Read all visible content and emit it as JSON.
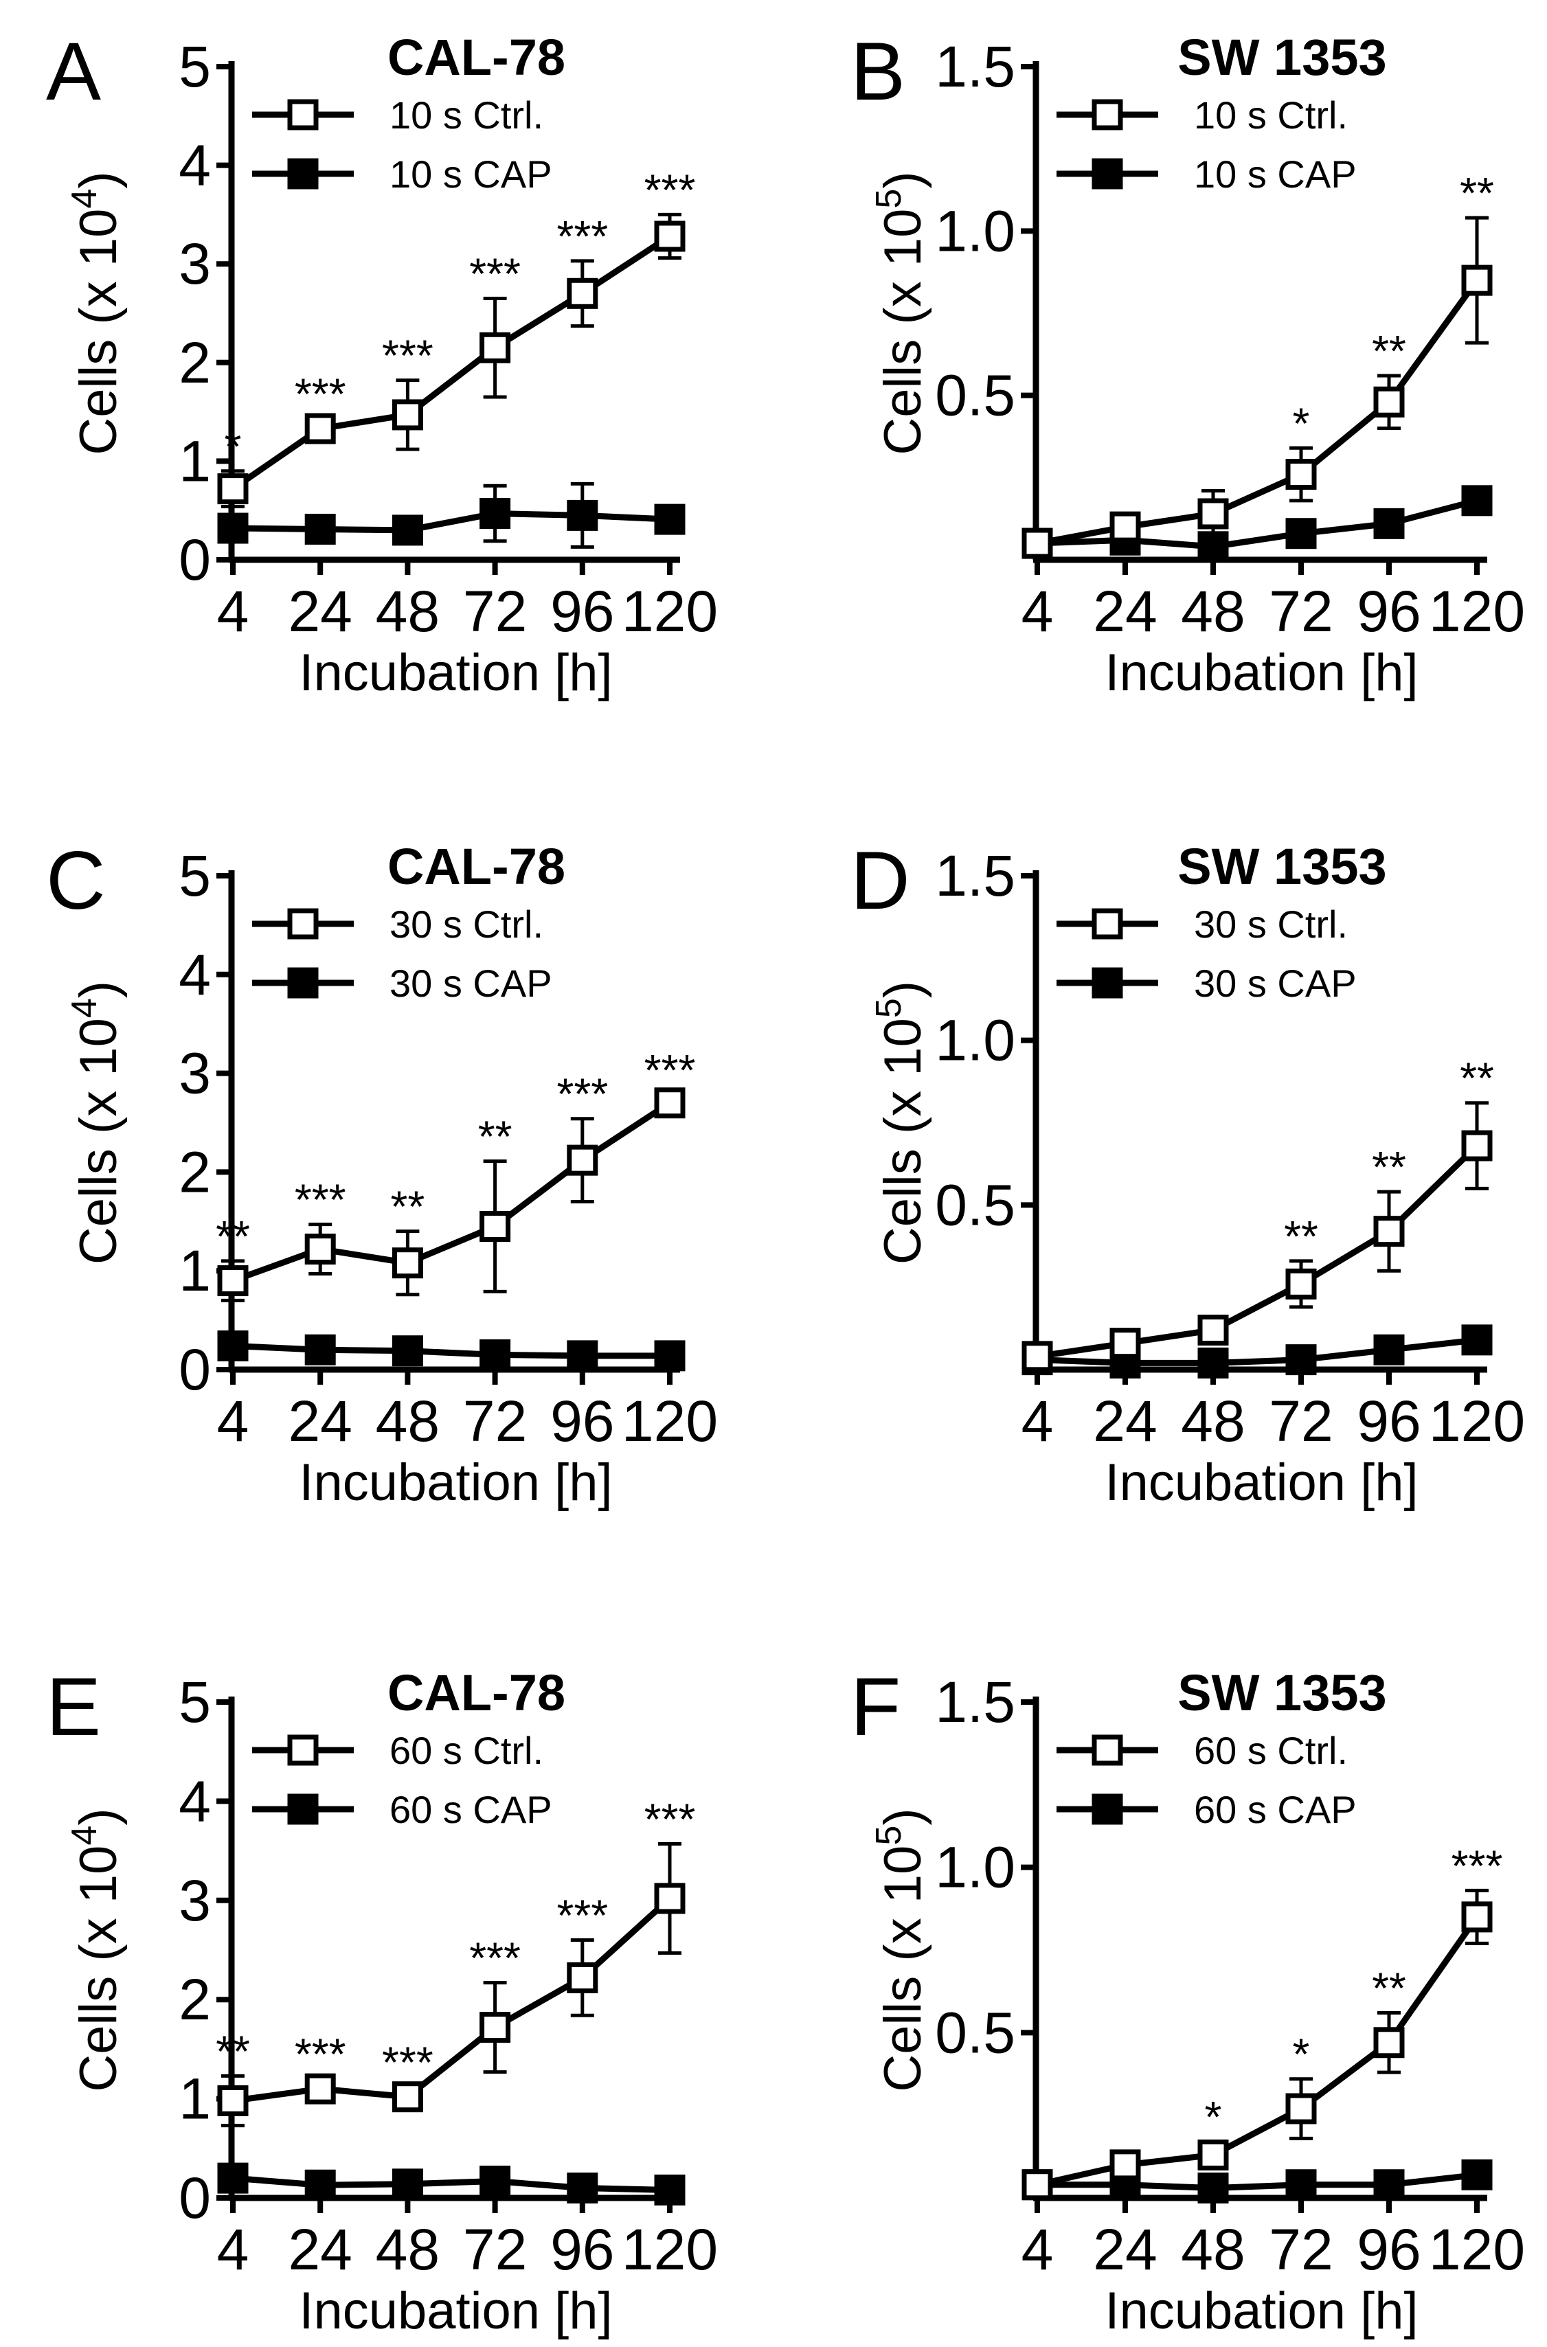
{
  "chart_data": [
    {
      "panel": "A",
      "type": "line",
      "title": "CAL-78",
      "xlabel": "Incubation [h]",
      "ylabel": "Cells (x 10^4)",
      "ylabel_base": "Cells (x 10",
      "ylabel_exp": "4",
      "ylabel_end": ")",
      "categories": [
        "4",
        "24",
        "48",
        "72",
        "96",
        "120"
      ],
      "ylim": [
        0,
        5
      ],
      "yticks": [
        "0",
        "1",
        "2",
        "3",
        "4",
        "5"
      ],
      "ytick_values": [
        0,
        1,
        2,
        3,
        4,
        5
      ],
      "series": [
        {
          "name": "10 s Ctrl.",
          "marker": "open-square",
          "values": [
            0.72,
            1.33,
            1.47,
            2.15,
            2.7,
            3.28
          ],
          "errors": [
            0.18,
            0.1,
            0.35,
            0.5,
            0.33,
            0.22
          ]
        },
        {
          "name": "10 s CAP",
          "marker": "filled-square",
          "values": [
            0.32,
            0.31,
            0.3,
            0.47,
            0.45,
            0.41
          ],
          "errors": [
            0.06,
            0.05,
            0.05,
            0.28,
            0.32,
            0.05
          ]
        }
      ],
      "significance": [
        "*",
        "***",
        "***",
        "***",
        "***",
        "***"
      ],
      "legend_location": "top-left"
    },
    {
      "panel": "B",
      "type": "line",
      "title": "SW 1353",
      "xlabel": "Incubation [h]",
      "ylabel": "Cells (x 10^5)",
      "ylabel_base": "Cells (x 10",
      "ylabel_exp": "5",
      "ylabel_end": ")",
      "categories": [
        "4",
        "24",
        "48",
        "72",
        "96",
        "120"
      ],
      "ylim": [
        0,
        1.5
      ],
      "yticks": [
        "0.5",
        "1.0",
        "1.5"
      ],
      "ytick_values": [
        0.5,
        1.0,
        1.5
      ],
      "series": [
        {
          "name": "10 s Ctrl.",
          "marker": "open-square",
          "values": [
            0.05,
            0.1,
            0.14,
            0.26,
            0.48,
            0.85
          ],
          "errors": [
            0.02,
            0.04,
            0.07,
            0.08,
            0.08,
            0.19
          ]
        },
        {
          "name": "10 s CAP",
          "marker": "filled-square",
          "values": [
            0.05,
            0.06,
            0.04,
            0.08,
            0.11,
            0.18
          ],
          "errors": [
            0.01,
            0.01,
            0.01,
            0.02,
            0.02,
            0.02
          ]
        }
      ],
      "significance": [
        "",
        "",
        "",
        "*",
        "**",
        "**"
      ],
      "legend_location": "top-left"
    },
    {
      "panel": "C",
      "type": "line",
      "title": "CAL-78",
      "xlabel": "Incubation [h]",
      "ylabel": "Cells (x 10^4)",
      "ylabel_base": "Cells (x 10",
      "ylabel_exp": "4",
      "ylabel_end": ")",
      "categories": [
        "4",
        "24",
        "48",
        "72",
        "96",
        "120"
      ],
      "ylim": [
        0,
        5
      ],
      "yticks": [
        "0",
        "1",
        "2",
        "3",
        "4",
        "5"
      ],
      "ytick_values": [
        0,
        1,
        2,
        3,
        4,
        5
      ],
      "series": [
        {
          "name": "30 s Ctrl.",
          "marker": "open-square",
          "values": [
            0.9,
            1.22,
            1.08,
            1.45,
            2.12,
            2.7
          ],
          "errors": [
            0.2,
            0.25,
            0.32,
            0.66,
            0.42,
            0.08
          ]
        },
        {
          "name": "30 s CAP",
          "marker": "filled-square",
          "values": [
            0.24,
            0.2,
            0.19,
            0.15,
            0.14,
            0.14
          ],
          "errors": [
            0.05,
            0.04,
            0.04,
            0.03,
            0.03,
            0.03
          ]
        }
      ],
      "significance": [
        "**",
        "***",
        "**",
        "**",
        "***",
        "***"
      ],
      "legend_location": "top-left"
    },
    {
      "panel": "D",
      "type": "line",
      "title": "SW 1353",
      "xlabel": "Incubation [h]",
      "ylabel": "Cells (x 10^5)",
      "ylabel_base": "Cells (x 10",
      "ylabel_exp": "5",
      "ylabel_end": ")",
      "categories": [
        "4",
        "24",
        "48",
        "72",
        "96",
        "120"
      ],
      "ylim": [
        0,
        1.5
      ],
      "yticks": [
        "0.5",
        "1.0",
        "1.5"
      ],
      "ytick_values": [
        0.5,
        1.0,
        1.5
      ],
      "series": [
        {
          "name": "30 s Ctrl.",
          "marker": "open-square",
          "values": [
            0.04,
            0.08,
            0.12,
            0.26,
            0.42,
            0.68
          ],
          "errors": [
            0.01,
            0.02,
            0.04,
            0.07,
            0.12,
            0.13
          ]
        },
        {
          "name": "30 s CAP",
          "marker": "filled-square",
          "values": [
            0.03,
            0.02,
            0.02,
            0.03,
            0.06,
            0.09
          ],
          "errors": [
            0.01,
            0.01,
            0.01,
            0.01,
            0.01,
            0.01
          ]
        }
      ],
      "significance": [
        "",
        "",
        "",
        "**",
        "**",
        "**"
      ],
      "legend_location": "top-left"
    },
    {
      "panel": "E",
      "type": "line",
      "title": "CAL-78",
      "xlabel": "Incubation [h]",
      "ylabel": "Cells (x 10^4)",
      "ylabel_base": "Cells (x 10",
      "ylabel_exp": "4",
      "ylabel_end": ")",
      "categories": [
        "4",
        "24",
        "48",
        "72",
        "96",
        "120"
      ],
      "ylim": [
        0,
        5
      ],
      "yticks": [
        "0",
        "1",
        "2",
        "3",
        "4",
        "5"
      ],
      "ytick_values": [
        0,
        1,
        2,
        3,
        4,
        5
      ],
      "series": [
        {
          "name": "60 s Ctrl.",
          "marker": "open-square",
          "values": [
            0.98,
            1.1,
            1.02,
            1.72,
            2.22,
            3.02
          ],
          "errors": [
            0.25,
            0.1,
            0.1,
            0.45,
            0.38,
            0.55
          ]
        },
        {
          "name": "60 s CAP",
          "marker": "filled-square",
          "values": [
            0.2,
            0.13,
            0.14,
            0.17,
            0.1,
            0.08
          ],
          "errors": [
            0.06,
            0.05,
            0.05,
            0.05,
            0.04,
            0.03
          ]
        }
      ],
      "significance": [
        "**",
        "***",
        "***",
        "***",
        "***",
        "***"
      ],
      "legend_location": "top-left"
    },
    {
      "panel": "F",
      "type": "line",
      "title": "SW 1353",
      "xlabel": "Incubation [h]",
      "ylabel": "Cells (x 10^5)",
      "ylabel_base": "Cells (x 10",
      "ylabel_exp": "5",
      "ylabel_end": ")",
      "categories": [
        "4",
        "24",
        "48",
        "72",
        "96",
        "120"
      ],
      "ylim": [
        0,
        1.5
      ],
      "yticks": [
        "0.5",
        "1.0",
        "1.5"
      ],
      "ytick_values": [
        0.5,
        1.0,
        1.5
      ],
      "series": [
        {
          "name": "60 s Ctrl.",
          "marker": "open-square",
          "values": [
            0.04,
            0.1,
            0.13,
            0.27,
            0.47,
            0.85
          ],
          "errors": [
            0.01,
            0.03,
            0.04,
            0.09,
            0.09,
            0.08
          ]
        },
        {
          "name": "60 s CAP",
          "marker": "filled-square",
          "values": [
            0.04,
            0.04,
            0.03,
            0.04,
            0.04,
            0.07
          ],
          "errors": [
            0.01,
            0.01,
            0.01,
            0.01,
            0.01,
            0.01
          ]
        }
      ],
      "significance": [
        "",
        "",
        "*",
        "*",
        "**",
        "***"
      ],
      "legend_location": "top-left"
    }
  ]
}
